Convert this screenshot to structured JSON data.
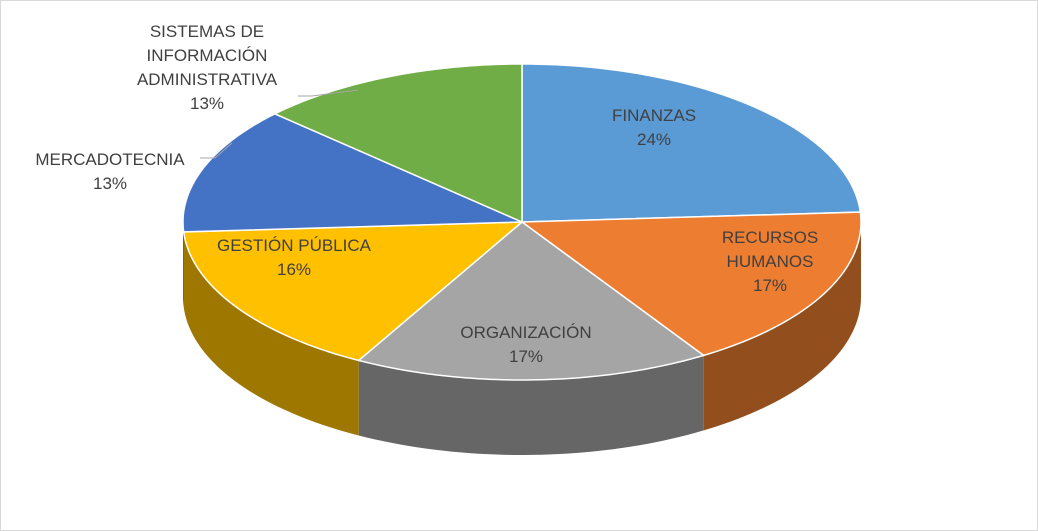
{
  "chart_data": {
    "type": "pie",
    "categories": [
      "FINANZAS",
      "RECURSOS HUMANOS",
      "ORGANIZACIÓN",
      "GESTIÓN PÚBLICA",
      "MERCADOTECNIA",
      "SISTEMAS DE INFORMACIÓN ADMINISTRATIVA"
    ],
    "values": [
      24,
      17,
      17,
      16,
      13,
      13
    ],
    "value_labels": [
      "24%",
      "17%",
      "17%",
      "16%",
      "13%",
      "13%"
    ],
    "colors": [
      "#5b9bd5",
      "#ed7d31",
      "#a5a5a5",
      "#ffc000",
      "#4472c4",
      "#70ad47"
    ]
  }
}
